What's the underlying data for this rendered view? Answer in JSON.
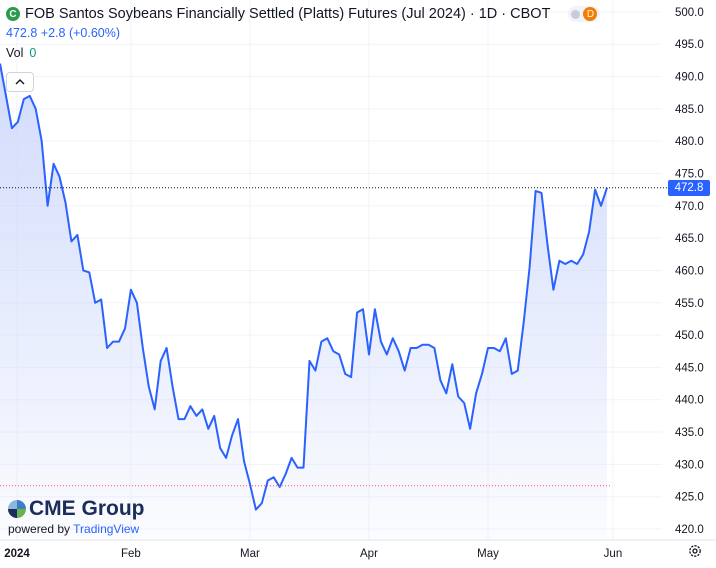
{
  "header": {
    "title": "FOB Santos Soybeans Financially Settled (Platts) Futures (Jul 2024) · 1D · CBOT",
    "logo_letter": "C",
    "badge": "D",
    "last_price": "472.8",
    "change": "+2.8",
    "change_pct": "(+0.60%)",
    "vol_label": "Vol",
    "vol_value": "0"
  },
  "price_tag": "472.8",
  "branding": {
    "brand": "CME Group",
    "powered_prefix": "powered by",
    "powered_brand": "TradingView"
  },
  "colors": {
    "line": "#2962ff",
    "area_top": "#cfd9fb",
    "last_price_line": "#131722",
    "low_line": "#ef5350"
  },
  "icons": {
    "collapse": "chevron-up-icon",
    "settings": "gear-icon"
  },
  "chart_data": {
    "type": "area",
    "y_axis": {
      "ticks": [
        500,
        495,
        490,
        485,
        480,
        475,
        470,
        465,
        460,
        455,
        450,
        445,
        440,
        435,
        430,
        425,
        420
      ],
      "tick_labels": [
        "500.0",
        "495.0",
        "490.0",
        "485.0",
        "480.0",
        "475.0",
        "470.0",
        "465.0",
        "460.0",
        "455.0",
        "450.0",
        "445.0",
        "440.0",
        "435.0",
        "430.0",
        "425.0",
        "420.0"
      ],
      "range": [
        418.3,
        500.6
      ],
      "position": "right"
    },
    "x_axis": {
      "labels": [
        "2024",
        "Feb",
        "Mar",
        "Apr",
        "May",
        "Jun"
      ],
      "label_bar_index": [
        0,
        22,
        42,
        62,
        82,
        103
      ]
    },
    "last_value": 472.8,
    "reference_lines": [
      472.8,
      426.7
    ],
    "values": [
      492,
      487,
      482,
      483,
      486.5,
      487,
      485,
      480,
      470,
      476.5,
      474.5,
      470.5,
      464.5,
      465.5,
      460,
      459.7,
      455,
      455.5,
      448,
      449,
      449,
      451,
      457,
      455,
      448,
      442,
      438.5,
      446,
      448,
      442,
      437,
      437,
      439,
      437.5,
      438.5,
      435.5,
      437.5,
      432.5,
      431,
      434.5,
      437,
      430.5,
      427,
      423,
      424,
      427.5,
      428,
      426.5,
      428.5,
      431,
      429.5,
      429.5,
      446,
      444.5,
      449,
      449.5,
      447.5,
      447,
      444,
      443.5,
      453.5,
      454,
      447,
      454,
      449,
      447,
      449.5,
      447.5,
      444.5,
      448,
      448,
      448.5,
      448.5,
      448,
      443,
      441,
      445.5,
      440.5,
      439.5,
      435.5,
      441,
      444,
      448,
      448,
      447.5,
      449.5,
      444,
      444.5,
      452,
      460.5,
      472.3,
      472,
      464,
      457,
      461.5,
      461,
      461.5,
      461,
      462.5,
      466,
      472.5,
      470,
      472.8
    ]
  }
}
